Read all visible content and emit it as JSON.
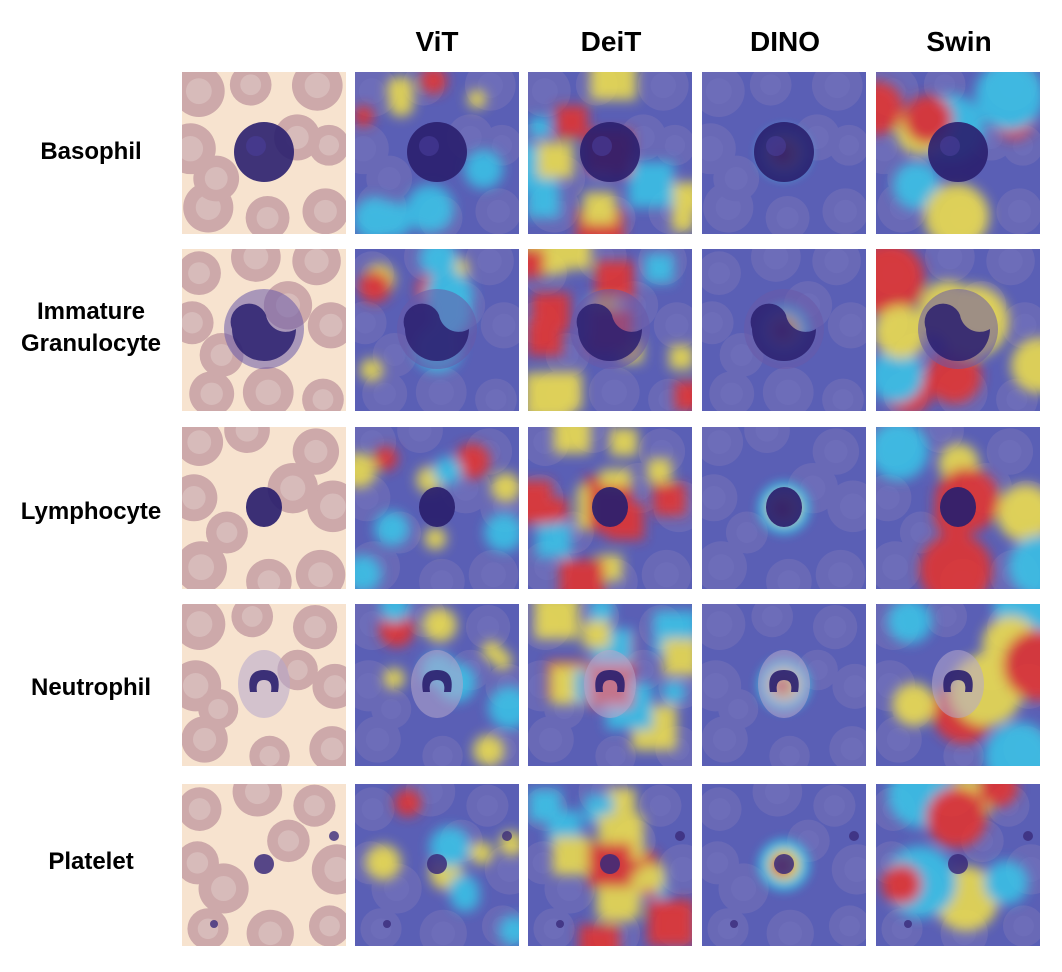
{
  "columns": [
    {
      "label": ""
    },
    {
      "label": "ViT"
    },
    {
      "label": "DeiT"
    },
    {
      "label": "DINO"
    },
    {
      "label": "Swin"
    }
  ],
  "rows": [
    {
      "label": "Basophil",
      "cell_type": "basophil"
    },
    {
      "label": "Immature Granulocyte",
      "cell_type": "immature-granulocyte"
    },
    {
      "label": "Lymphocyte",
      "cell_type": "lymphocyte"
    },
    {
      "label": "Neutrophil",
      "cell_type": "neutrophil"
    },
    {
      "label": "Platelet",
      "cell_type": "platelet"
    }
  ],
  "colors": {
    "original_background": "#f7e3cf",
    "red_blood_cell": "#c9a3a6",
    "stain_dark": "#2a1f6e",
    "overlay_cool": "#5a5fb5",
    "heat_low": "#38c6e8",
    "heat_mid": "#f2e24a",
    "heat_high": "#e8312a"
  }
}
